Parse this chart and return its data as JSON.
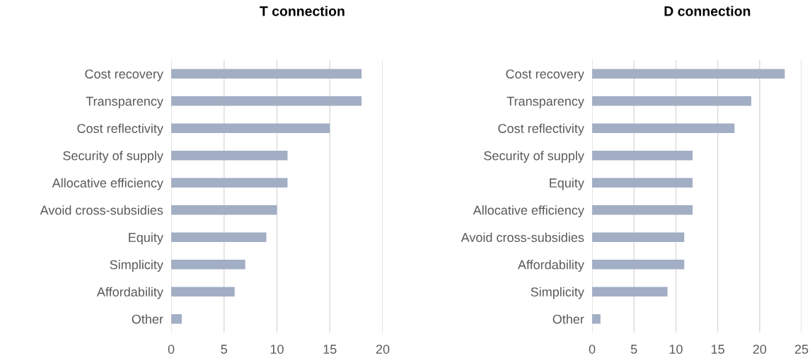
{
  "chart_data": [
    {
      "type": "bar",
      "orientation": "horizontal",
      "title": "T connection",
      "categories": [
        "Cost recovery",
        "Transparency",
        "Cost reflectivity",
        "Security of supply",
        "Allocative efficiency",
        "Avoid cross-subsidies",
        "Equity",
        "Simplicity",
        "Affordability",
        "Other"
      ],
      "values": [
        18,
        18,
        15,
        11,
        11,
        10,
        9,
        7,
        6,
        1
      ],
      "color": "#a2aec4",
      "xlim": [
        0,
        20
      ],
      "xticks": [
        0,
        5,
        10,
        15,
        20
      ],
      "grid": "x"
    },
    {
      "type": "bar",
      "orientation": "horizontal",
      "title": "D connection",
      "categories": [
        "Cost recovery",
        "Transparency",
        "Cost reflectivity",
        "Security of supply",
        "Equity",
        "Allocative efficiency",
        "Avoid cross-subsidies",
        "Affordability",
        "Simplicity",
        "Other"
      ],
      "values": [
        23,
        19,
        17,
        12,
        12,
        12,
        11,
        11,
        9,
        1
      ],
      "color": "#a2aec4",
      "xlim": [
        0,
        25
      ],
      "xticks": [
        0,
        5,
        10,
        15,
        20,
        25
      ],
      "grid": "x"
    }
  ]
}
